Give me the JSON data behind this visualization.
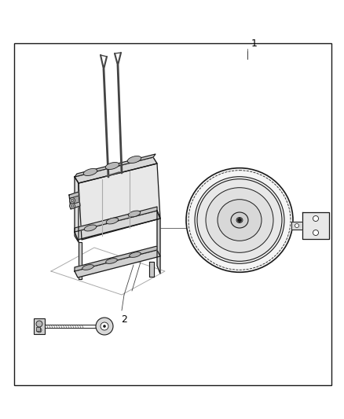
{
  "bg_color": "#ffffff",
  "border_color": "#1a1a1a",
  "line_color": "#1a1a1a",
  "fig_width": 4.38,
  "fig_height": 5.33,
  "dpi": 100,
  "label_1": "1",
  "label_2": "2"
}
